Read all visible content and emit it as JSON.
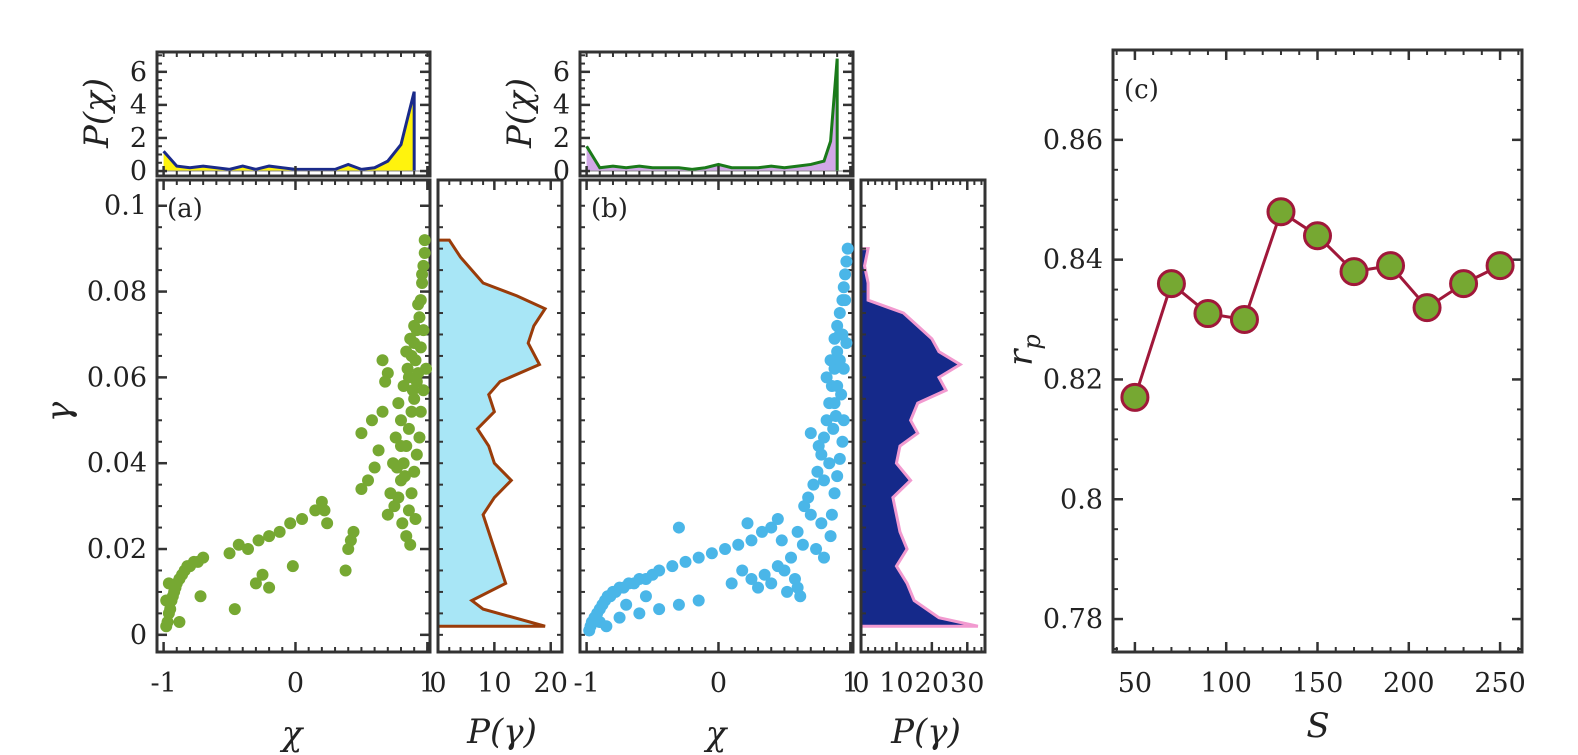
{
  "chart_data": [
    {
      "id": "a",
      "type": "scatter",
      "panel_label": "(a)",
      "xlabel": "χ",
      "ylabel": "γ",
      "xlim": [
        -1.05,
        1.02
      ],
      "ylim": [
        -0.004,
        0.106
      ],
      "xticks": [
        -1,
        0,
        1
      ],
      "xtick_labels": [
        "-1",
        "0",
        "1"
      ],
      "yticks": [
        0,
        0.02,
        0.04,
        0.06,
        0.08,
        0.1
      ],
      "ytick_labels": [
        "0",
        "0.02",
        "0.04",
        "0.06",
        "0.08",
        "0.1"
      ],
      "point_color": "#76a832",
      "points": [
        [
          -0.98,
          0.002
        ],
        [
          -0.97,
          0.003
        ],
        [
          -0.96,
          0.005
        ],
        [
          -0.95,
          0.006
        ],
        [
          -0.94,
          0.008
        ],
        [
          -0.93,
          0.009
        ],
        [
          -0.92,
          0.01
        ],
        [
          -0.91,
          0.011
        ],
        [
          -0.9,
          0.012
        ],
        [
          -0.88,
          0.013
        ],
        [
          -0.86,
          0.014
        ],
        [
          -0.84,
          0.015
        ],
        [
          -0.82,
          0.016
        ],
        [
          -0.8,
          0.016
        ],
        [
          -0.77,
          0.017
        ],
        [
          -0.74,
          0.017
        ],
        [
          -0.7,
          0.018
        ],
        [
          -0.88,
          0.003
        ],
        [
          -0.72,
          0.009
        ],
        [
          -0.46,
          0.006
        ],
        [
          -0.98,
          0.008
        ],
        [
          -0.96,
          0.012
        ],
        [
          -0.5,
          0.019
        ],
        [
          -0.43,
          0.021
        ],
        [
          -0.36,
          0.02
        ],
        [
          -0.28,
          0.022
        ],
        [
          -0.2,
          0.023
        ],
        [
          -0.12,
          0.024
        ],
        [
          -0.04,
          0.026
        ],
        [
          0.05,
          0.027
        ],
        [
          0.15,
          0.029
        ],
        [
          0.2,
          0.031
        ],
        [
          0.24,
          0.026
        ],
        [
          0.22,
          0.029
        ],
        [
          -0.3,
          0.012
        ],
        [
          -0.25,
          0.014
        ],
        [
          -0.2,
          0.011
        ],
        [
          -0.02,
          0.016
        ],
        [
          0.38,
          0.015
        ],
        [
          0.4,
          0.02
        ],
        [
          0.42,
          0.022
        ],
        [
          0.44,
          0.024
        ],
        [
          0.5,
          0.034
        ],
        [
          0.55,
          0.036
        ],
        [
          0.6,
          0.039
        ],
        [
          0.5,
          0.047
        ],
        [
          0.58,
          0.05
        ],
        [
          0.63,
          0.043
        ],
        [
          0.66,
          0.052
        ],
        [
          0.7,
          0.061
        ],
        [
          0.66,
          0.064
        ],
        [
          0.68,
          0.059
        ],
        [
          0.7,
          0.028
        ],
        [
          0.72,
          0.033
        ],
        [
          0.74,
          0.04
        ],
        [
          0.75,
          0.03
        ],
        [
          0.78,
          0.032
        ],
        [
          0.8,
          0.036
        ],
        [
          0.82,
          0.04
        ],
        [
          0.84,
          0.044
        ],
        [
          0.86,
          0.048
        ],
        [
          0.88,
          0.052
        ],
        [
          0.9,
          0.055
        ],
        [
          0.92,
          0.059
        ],
        [
          0.76,
          0.046
        ],
        [
          0.8,
          0.05
        ],
        [
          0.84,
          0.023
        ],
        [
          0.86,
          0.029
        ],
        [
          0.88,
          0.033
        ],
        [
          0.9,
          0.038
        ],
        [
          0.92,
          0.042
        ],
        [
          0.94,
          0.046
        ],
        [
          0.78,
          0.054
        ],
        [
          0.82,
          0.058
        ],
        [
          0.85,
          0.062
        ],
        [
          0.88,
          0.065
        ],
        [
          0.9,
          0.068
        ],
        [
          0.92,
          0.071
        ],
        [
          0.94,
          0.074
        ],
        [
          0.95,
          0.078
        ],
        [
          0.96,
          0.082
        ],
        [
          0.97,
          0.086
        ],
        [
          0.98,
          0.089
        ],
        [
          0.98,
          0.092
        ],
        [
          0.96,
          0.084
        ],
        [
          0.93,
          0.077
        ],
        [
          0.9,
          0.072
        ],
        [
          0.87,
          0.069
        ],
        [
          0.84,
          0.066
        ],
        [
          0.86,
          0.06
        ],
        [
          0.89,
          0.057
        ],
        [
          0.91,
          0.064
        ],
        [
          0.93,
          0.061
        ],
        [
          0.95,
          0.067
        ],
        [
          0.97,
          0.071
        ],
        [
          0.83,
          0.037
        ],
        [
          0.81,
          0.026
        ],
        [
          0.87,
          0.021
        ],
        [
          0.91,
          0.027
        ],
        [
          0.95,
          0.052
        ],
        [
          0.97,
          0.057
        ],
        [
          0.99,
          0.062
        ],
        [
          0.8,
          0.044
        ],
        [
          0.77,
          0.039
        ]
      ],
      "x": [],
      "y": []
    },
    {
      "id": "a_top",
      "type": "area",
      "ylabel": "P(χ)",
      "xlim": [
        -1.05,
        1.02
      ],
      "ylim": [
        -0.3,
        7.2
      ],
      "yticks": [
        0,
        2,
        4,
        6
      ],
      "ytick_labels": [
        "0",
        "2",
        "4",
        "6"
      ],
      "line_color": "#1a2a8a",
      "fill_color": "#fff200",
      "fill_from_x": 0.8,
      "x": [
        -1,
        -0.9,
        -0.8,
        -0.7,
        -0.6,
        -0.5,
        -0.4,
        -0.3,
        -0.2,
        -0.1,
        0,
        0.1,
        0.2,
        0.3,
        0.4,
        0.5,
        0.6,
        0.7,
        0.8,
        0.9
      ],
      "y": [
        1.2,
        0.3,
        0.2,
        0.3,
        0.2,
        0.1,
        0.3,
        0.1,
        0.3,
        0.2,
        0.1,
        0.1,
        0.1,
        0.1,
        0.4,
        0.1,
        0.2,
        0.6,
        1.6,
        4.8
      ]
    },
    {
      "id": "a_side",
      "type": "area",
      "xlabel": "P(γ)",
      "xlim": [
        0,
        22
      ],
      "xticks": [
        0,
        10,
        20
      ],
      "xtick_labels": [
        "0",
        "10",
        "20"
      ],
      "line_color": "#9a3c0a",
      "fill_color": "#a8e6f6",
      "y": [
        0.092,
        0.088,
        0.082,
        0.079,
        0.076,
        0.072,
        0.068,
        0.063,
        0.059,
        0.056,
        0.052,
        0.048,
        0.044,
        0.04,
        0.036,
        0.032,
        0.028,
        0.024,
        0.02,
        0.016,
        0.012,
        0.008,
        0.006,
        0.002
      ],
      "x": [
        2,
        4,
        8,
        14,
        19,
        17,
        16,
        18,
        11,
        9,
        10,
        7,
        9,
        10,
        13,
        10,
        8,
        9,
        10,
        11,
        12,
        6,
        8,
        19
      ]
    },
    {
      "id": "b",
      "type": "scatter",
      "panel_label": "(b)",
      "xlabel": "χ",
      "xlim": [
        -1.05,
        1.02
      ],
      "ylim": [
        -0.004,
        0.106
      ],
      "xticks": [
        -1,
        0,
        1
      ],
      "xtick_labels": [
        "-1",
        "0",
        "1"
      ],
      "point_color": "#4ab6e8",
      "points": [
        [
          -0.98,
          0.001
        ],
        [
          -0.97,
          0.002
        ],
        [
          -0.96,
          0.003
        ],
        [
          -0.94,
          0.004
        ],
        [
          -0.92,
          0.005
        ],
        [
          -0.9,
          0.006
        ],
        [
          -0.88,
          0.007
        ],
        [
          -0.86,
          0.008
        ],
        [
          -0.84,
          0.009
        ],
        [
          -0.82,
          0.009
        ],
        [
          -0.8,
          0.01
        ],
        [
          -0.78,
          0.01
        ],
        [
          -0.75,
          0.011
        ],
        [
          -0.72,
          0.011
        ],
        [
          -0.68,
          0.012
        ],
        [
          -0.64,
          0.012
        ],
        [
          -0.6,
          0.013
        ],
        [
          -0.55,
          0.013
        ],
        [
          -0.5,
          0.014
        ],
        [
          -0.9,
          0.003
        ],
        [
          -0.85,
          0.002
        ],
        [
          -0.75,
          0.004
        ],
        [
          -0.6,
          0.005
        ],
        [
          -0.45,
          0.006
        ],
        [
          -0.3,
          0.007
        ],
        [
          -0.15,
          0.008
        ],
        [
          -0.7,
          0.007
        ],
        [
          -0.55,
          0.009
        ],
        [
          -0.45,
          0.015
        ],
        [
          -0.35,
          0.016
        ],
        [
          -0.25,
          0.017
        ],
        [
          -0.15,
          0.018
        ],
        [
          -0.05,
          0.019
        ],
        [
          0.05,
          0.02
        ],
        [
          0.15,
          0.021
        ],
        [
          0.25,
          0.022
        ],
        [
          0.33,
          0.024
        ],
        [
          0.4,
          0.025
        ],
        [
          0.45,
          0.027
        ],
        [
          -0.3,
          0.025
        ],
        [
          0.22,
          0.026
        ],
        [
          0.1,
          0.012
        ],
        [
          0.18,
          0.015
        ],
        [
          0.25,
          0.013
        ],
        [
          0.3,
          0.011
        ],
        [
          0.35,
          0.014
        ],
        [
          0.4,
          0.012
        ],
        [
          0.45,
          0.016
        ],
        [
          0.5,
          0.015
        ],
        [
          0.55,
          0.018
        ],
        [
          0.58,
          0.013
        ],
        [
          0.6,
          0.011
        ],
        [
          0.62,
          0.009
        ],
        [
          0.52,
          0.01
        ],
        [
          0.48,
          0.022
        ],
        [
          0.6,
          0.024
        ],
        [
          0.64,
          0.021
        ],
        [
          0.65,
          0.03
        ],
        [
          0.68,
          0.032
        ],
        [
          0.7,
          0.028
        ],
        [
          0.72,
          0.035
        ],
        [
          0.75,
          0.038
        ],
        [
          0.78,
          0.042
        ],
        [
          0.8,
          0.046
        ],
        [
          0.82,
          0.05
        ],
        [
          0.84,
          0.054
        ],
        [
          0.86,
          0.058
        ],
        [
          0.88,
          0.062
        ],
        [
          0.9,
          0.066
        ],
        [
          0.92,
          0.07
        ],
        [
          0.7,
          0.047
        ],
        [
          0.76,
          0.044
        ],
        [
          0.8,
          0.036
        ],
        [
          0.84,
          0.04
        ],
        [
          0.86,
          0.028
        ],
        [
          0.88,
          0.033
        ],
        [
          0.9,
          0.037
        ],
        [
          0.92,
          0.041
        ],
        [
          0.94,
          0.045
        ],
        [
          0.82,
          0.06
        ],
        [
          0.85,
          0.064
        ],
        [
          0.88,
          0.069
        ],
        [
          0.9,
          0.072
        ],
        [
          0.92,
          0.075
        ],
        [
          0.94,
          0.078
        ],
        [
          0.95,
          0.081
        ],
        [
          0.96,
          0.084
        ],
        [
          0.97,
          0.087
        ],
        [
          0.98,
          0.09
        ],
        [
          0.96,
          0.078
        ],
        [
          0.94,
          0.07
        ],
        [
          0.92,
          0.064
        ],
        [
          0.9,
          0.058
        ],
        [
          0.88,
          0.054
        ],
        [
          0.87,
          0.048
        ],
        [
          0.89,
          0.051
        ],
        [
          0.93,
          0.056
        ],
        [
          0.95,
          0.062
        ],
        [
          0.97,
          0.068
        ],
        [
          0.78,
          0.026
        ],
        [
          0.74,
          0.02
        ],
        [
          0.8,
          0.018
        ],
        [
          0.85,
          0.023
        ],
        [
          0.95,
          0.05
        ]
      ],
      "x": [],
      "y": []
    },
    {
      "id": "b_top",
      "type": "area",
      "ylabel": "P(χ)",
      "xlim": [
        -1.05,
        1.02
      ],
      "ylim": [
        -0.3,
        7.2
      ],
      "yticks": [
        0,
        2,
        4,
        6
      ],
      "ytick_labels": [
        "0",
        "2",
        "4",
        "6"
      ],
      "line_color": "#1a7a1a",
      "fill_color": "#cfa3e6",
      "fill_from_x": 0.8,
      "x": [
        -1,
        -0.9,
        -0.8,
        -0.7,
        -0.6,
        -0.5,
        -0.4,
        -0.3,
        -0.2,
        -0.1,
        0,
        0.1,
        0.2,
        0.3,
        0.4,
        0.5,
        0.6,
        0.7,
        0.8,
        0.85,
        0.9
      ],
      "y": [
        1.5,
        0.2,
        0.3,
        0.2,
        0.3,
        0.2,
        0.2,
        0.2,
        0.1,
        0.2,
        0.4,
        0.2,
        0.2,
        0.2,
        0.3,
        0.2,
        0.3,
        0.4,
        0.6,
        1.8,
        6.8
      ]
    },
    {
      "id": "b_side",
      "type": "area",
      "xlabel": "P(γ)",
      "xlim": [
        0,
        35
      ],
      "xticks": [
        0,
        10,
        20,
        30
      ],
      "xtick_labels": [
        "0",
        "10",
        "20",
        "30"
      ],
      "line_color": "#f29ad0",
      "fill_color": "#15298a",
      "y": [
        0.09,
        0.086,
        0.082,
        0.078,
        0.075,
        0.072,
        0.069,
        0.066,
        0.063,
        0.06,
        0.057,
        0.054,
        0.05,
        0.047,
        0.044,
        0.04,
        0.036,
        0.032,
        0.028,
        0.024,
        0.02,
        0.016,
        0.012,
        0.008,
        0.004,
        0.002
      ],
      "x": [
        2,
        1,
        2,
        2,
        12,
        16,
        20,
        22,
        28,
        22,
        24,
        16,
        14,
        16,
        11,
        10,
        14,
        9,
        10,
        11,
        13,
        10,
        13,
        15,
        22,
        33
      ]
    },
    {
      "id": "c",
      "type": "line",
      "panel_label": "(c)",
      "xlabel": "S",
      "ylabel": "r_p",
      "xlim": [
        38,
        262
      ],
      "ylim": [
        0.7745,
        0.875
      ],
      "xticks": [
        50,
        100,
        150,
        200,
        250
      ],
      "xtick_labels": [
        "50",
        "100",
        "150",
        "200",
        "250"
      ],
      "yticks": [
        0.78,
        0.8,
        0.82,
        0.84,
        0.86
      ],
      "ytick_labels": [
        "0.78",
        "0.8",
        "0.82",
        "0.84",
        "0.86"
      ],
      "line_color": "#a0183a",
      "marker_color": "#76a832",
      "x": [
        50,
        70,
        90,
        110,
        130,
        150,
        170,
        190,
        210,
        230,
        250
      ],
      "y": [
        0.817,
        0.836,
        0.831,
        0.83,
        0.848,
        0.844,
        0.838,
        0.839,
        0.832,
        0.836,
        0.839
      ]
    }
  ],
  "labels": {
    "a_panel": "(a)",
    "b_panel": "(b)",
    "c_panel": "(c)",
    "gamma": "γ",
    "chi": "χ",
    "p_chi": "P(χ)",
    "p_gamma": "P(γ)",
    "r_p": "r",
    "r_p_sub": "p",
    "s": "S"
  }
}
